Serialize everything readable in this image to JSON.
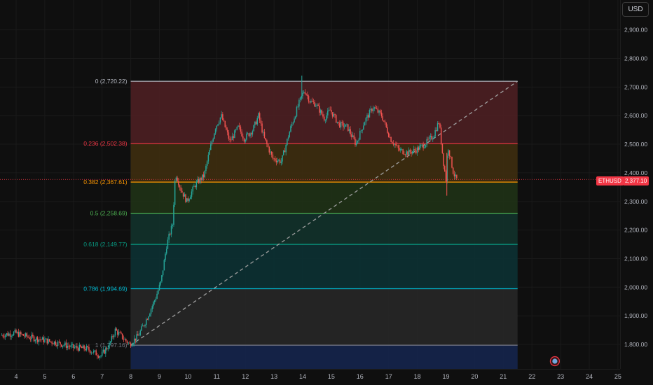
{
  "currency_button": "USD",
  "ticker_label": "ETHUSD",
  "last_price_label": "2,377.10",
  "colors": {
    "background": "#0f0f0f",
    "up_candle": "#26a69a",
    "down_candle": "#ef5350",
    "price_line": "#f23645",
    "trend_line": "#9e9e9e"
  },
  "chart_data": {
    "type": "candlestick",
    "x_axis": {
      "ticks": [
        "4",
        "5",
        "6",
        "7",
        "8",
        "9",
        "10",
        "11",
        "12",
        "13",
        "14",
        "15",
        "16",
        "17",
        "18",
        "19",
        "20",
        "21",
        "22",
        "23",
        "24",
        "25"
      ],
      "range": [
        3.5,
        25.5
      ]
    },
    "y_axis": {
      "ticks": [
        "1,800.00",
        "1,900.00",
        "2,000.00",
        "2,100.00",
        "2,200.00",
        "2,300.00",
        "2,400.00",
        "2,500.00",
        "2,600.00",
        "2,700.00",
        "2,800.00",
        "2,900.00"
      ],
      "range": [
        1720,
        2995
      ]
    },
    "last_price": 2377.1,
    "fibonacci": [
      {
        "ratio": "0",
        "price": 2720.22,
        "label": "0 (2,720.22)",
        "line_color": "#b2b5be",
        "fill": "#4a1f22",
        "label_color": "#b2b5be"
      },
      {
        "ratio": "0.236",
        "price": 2502.38,
        "label": "0.236 (2,502.38)",
        "line_color": "#f23645",
        "fill": "#3c2c10",
        "label_color": "#f23645"
      },
      {
        "ratio": "0.382",
        "price": 2367.61,
        "label": "0.382 (2,367.61)",
        "line_color": "#ff9800",
        "fill": "#1f3016",
        "label_color": "#ff9800"
      },
      {
        "ratio": "0.5",
        "price": 2258.69,
        "label": "0.5 (2,258.69)",
        "line_color": "#4caf50",
        "fill": "#12302a",
        "label_color": "#4caf50"
      },
      {
        "ratio": "0.618",
        "price": 2149.77,
        "label": "0.618 (2,149.77)",
        "line_color": "#089981",
        "fill": "#0d2f31",
        "label_color": "#089981"
      },
      {
        "ratio": "0.786",
        "price": 1994.69,
        "label": "0.786 (1,994.69)",
        "line_color": "#00bcd4",
        "fill": "#262626",
        "label_color": "#00bcd4"
      },
      {
        "ratio": "1",
        "price": 1797.16,
        "label": "1 (1,797.16)",
        "line_color": "#787b86",
        "fill": "#15244a",
        "label_color": "#787b86"
      }
    ],
    "fib_x_range": [
      8.0,
      21.5
    ],
    "trend_line": {
      "from": [
        8.0,
        1797.16
      ],
      "to": [
        21.5,
        2720.22
      ]
    },
    "series": [
      {
        "name": "ETHUSD",
        "path": [
          [
            3.5,
            1832
          ],
          [
            4.0,
            1840
          ],
          [
            4.5,
            1825
          ],
          [
            5.0,
            1815
          ],
          [
            5.5,
            1805
          ],
          [
            6.0,
            1790
          ],
          [
            6.5,
            1785
          ],
          [
            7.0,
            1760
          ],
          [
            7.3,
            1800
          ],
          [
            7.5,
            1850
          ],
          [
            7.7,
            1830
          ],
          [
            8.0,
            1800
          ],
          [
            8.3,
            1830
          ],
          [
            8.6,
            1890
          ],
          [
            8.9,
            1960
          ],
          [
            9.1,
            2020
          ],
          [
            9.3,
            2150
          ],
          [
            9.5,
            2220
          ],
          [
            9.6,
            2400
          ],
          [
            9.8,
            2340
          ],
          [
            10.0,
            2300
          ],
          [
            10.3,
            2360
          ],
          [
            10.6,
            2390
          ],
          [
            10.8,
            2480
          ],
          [
            11.0,
            2560
          ],
          [
            11.2,
            2600
          ],
          [
            11.5,
            2510
          ],
          [
            11.8,
            2560
          ],
          [
            12.0,
            2520
          ],
          [
            12.3,
            2550
          ],
          [
            12.5,
            2600
          ],
          [
            12.7,
            2520
          ],
          [
            13.0,
            2450
          ],
          [
            13.3,
            2440
          ],
          [
            13.6,
            2550
          ],
          [
            13.9,
            2640
          ],
          [
            14.1,
            2690
          ],
          [
            14.3,
            2650
          ],
          [
            14.5,
            2640
          ],
          [
            14.8,
            2590
          ],
          [
            15.0,
            2620
          ],
          [
            15.3,
            2570
          ],
          [
            15.6,
            2560
          ],
          [
            15.9,
            2500
          ],
          [
            16.2,
            2580
          ],
          [
            16.5,
            2630
          ],
          [
            16.8,
            2600
          ],
          [
            17.1,
            2520
          ],
          [
            17.4,
            2480
          ],
          [
            17.7,
            2470
          ],
          [
            18.0,
            2480
          ],
          [
            18.3,
            2500
          ],
          [
            18.6,
            2530
          ],
          [
            18.8,
            2580
          ],
          [
            18.95,
            2440
          ],
          [
            19.05,
            2370
          ],
          [
            19.1,
            2500
          ],
          [
            19.3,
            2400
          ],
          [
            19.4,
            2377
          ]
        ]
      }
    ]
  }
}
